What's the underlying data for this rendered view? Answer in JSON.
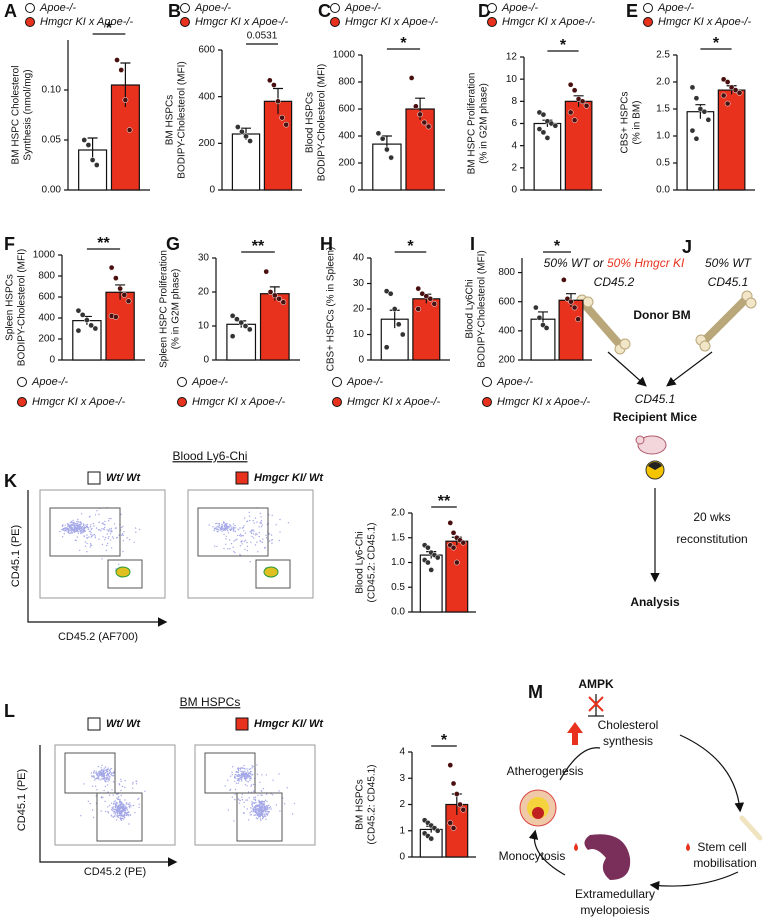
{
  "chart_data": [
    {
      "type": "bar",
      "panel": "A",
      "ylabel": [
        "BM HSPC Cholesterol",
        "Synthesis (nmol/mg)"
      ],
      "ylim": [
        0,
        0.15
      ],
      "yticks": [
        {
          "value": 0,
          "label": "0.00"
        },
        0.05,
        {
          "value": 0.1,
          "label": "0.10"
        }
      ],
      "significance": "*",
      "legend": "top",
      "series": [
        {
          "name": "Apoe-/-",
          "color": "#ffffff",
          "point_color": "#333333",
          "values": [
            0.04
          ],
          "errors": [
            0.012
          ],
          "points": [
            0.05,
            0.045,
            0.03,
            0.025
          ]
        },
        {
          "name": "Hmgcr KI x Apoe-/-",
          "color": "#e8321e",
          "point_color": "#4a1010",
          "values": [
            0.105
          ],
          "errors": [
            0.022
          ],
          "points": [
            0.13,
            0.12,
            0.09,
            0.06
          ]
        }
      ]
    },
    {
      "type": "bar",
      "panel": "B",
      "ylabel": [
        "BM HSPCs",
        "BODIPY-Cholesterol (MFI)"
      ],
      "ylim": [
        0,
        600
      ],
      "yticks": [
        0,
        200,
        400,
        600
      ],
      "significance": "0.0531",
      "legend": "top",
      "series": [
        {
          "name": "Apoe-/-",
          "color": "#ffffff",
          "point_color": "#333333",
          "values": [
            240
          ],
          "errors": [
            25
          ],
          "points": [
            270,
            250,
            230,
            210
          ]
        },
        {
          "name": "Hmgcr KI x Apoe-/-",
          "color": "#e8321e",
          "point_color": "#4a1010",
          "values": [
            380
          ],
          "errors": [
            55
          ],
          "points": [
            470,
            450,
            380,
            310,
            280
          ]
        }
      ]
    },
    {
      "type": "bar",
      "panel": "C",
      "ylabel": [
        "Blood HSPCs",
        "BODIPY-Cholesterol (MFI)"
      ],
      "ylim": [
        0,
        1000
      ],
      "yticks": [
        0,
        200,
        400,
        600,
        800,
        1000
      ],
      "significance": "*",
      "legend": "top",
      "series": [
        {
          "name": "Apoe-/-",
          "color": "#ffffff",
          "point_color": "#333333",
          "values": [
            340
          ],
          "errors": [
            60
          ],
          "points": [
            420,
            380,
            300,
            240
          ]
        },
        {
          "name": "Hmgcr KI x Apoe-/-",
          "color": "#e8321e",
          "point_color": "#4a1010",
          "values": [
            600
          ],
          "errors": [
            80
          ],
          "points": [
            830,
            620,
            560,
            500,
            470
          ]
        }
      ]
    },
    {
      "type": "bar",
      "panel": "D",
      "ylabel": [
        "BM HSPC Proliferation",
        "(% in G2M phase)"
      ],
      "ylim": [
        0,
        12
      ],
      "yticks": [
        0,
        2,
        4,
        6,
        8,
        10,
        12
      ],
      "significance": "*",
      "legend": "top",
      "series": [
        {
          "name": "Apoe-/-",
          "color": "#ffffff",
          "point_color": "#333333",
          "values": [
            6.0
          ],
          "errors": [
            0.3
          ],
          "points": [
            7.0,
            6.8,
            6.2,
            6.0,
            5.8,
            5.5,
            5.2,
            4.7
          ]
        },
        {
          "name": "Hmgcr KI x Apoe-/-",
          "color": "#e8321e",
          "point_color": "#4a1010",
          "values": [
            8.0
          ],
          "errors": [
            0.5
          ],
          "points": [
            9.5,
            9.0,
            8.2,
            8.0,
            7.6,
            7.0,
            6.3
          ]
        }
      ]
    },
    {
      "type": "bar",
      "panel": "E",
      "ylabel": [
        "CBS+ HSPCs",
        "(% in BM)"
      ],
      "ylim": [
        0,
        2.5
      ],
      "yticks": [
        {
          "value": 0,
          "label": "0.0"
        },
        0.5,
        {
          "value": 1,
          "label": "1.0"
        },
        1.5,
        {
          "value": 2,
          "label": "2.0"
        },
        2.5
      ],
      "significance": "*",
      "legend": "top",
      "series": [
        {
          "name": "Apoe-/-",
          "color": "#ffffff",
          "point_color": "#333333",
          "values": [
            1.45
          ],
          "errors": [
            0.13
          ],
          "points": [
            1.9,
            1.7,
            1.5,
            1.45,
            1.3,
            1.1,
            0.95
          ]
        },
        {
          "name": "Hmgcr KI x Apoe-/-",
          "color": "#e8321e",
          "point_color": "#4a1010",
          "values": [
            1.85
          ],
          "errors": [
            0.08
          ],
          "points": [
            2.05,
            2.0,
            1.9,
            1.85,
            1.8,
            1.75,
            1.6
          ]
        }
      ]
    },
    {
      "type": "bar",
      "panel": "F",
      "ylabel": [
        "Spleen HSPCs",
        "BODIPY-Cholesterol (MFI)"
      ],
      "ylim": [
        0,
        1000
      ],
      "yticks": [
        0,
        200,
        400,
        600,
        800,
        1000
      ],
      "significance": "**",
      "legend": "bottom",
      "series": [
        {
          "name": "Apoe-/-",
          "color": "#ffffff",
          "point_color": "#333333",
          "values": [
            375
          ],
          "errors": [
            40
          ],
          "points": [
            470,
            430,
            380,
            330,
            300,
            280
          ]
        },
        {
          "name": "Hmgcr KI x Apoe-/-",
          "color": "#e8321e",
          "point_color": "#4a1010",
          "values": [
            645
          ],
          "errors": [
            70
          ],
          "points": [
            880,
            780,
            680,
            620,
            560,
            420,
            410
          ]
        }
      ]
    },
    {
      "type": "bar",
      "panel": "G",
      "ylabel": [
        "Spleen HSPC Proliferation",
        "(% in G2M phase)"
      ],
      "ylim": [
        0,
        30
      ],
      "yticks": [
        0,
        10,
        20,
        30
      ],
      "significance": "**",
      "legend": "bottom",
      "series": [
        {
          "name": "Apoe-/-",
          "color": "#ffffff",
          "point_color": "#333333",
          "values": [
            10.5
          ],
          "errors": [
            1.0
          ],
          "points": [
            13,
            12,
            11,
            10,
            9,
            7
          ]
        },
        {
          "name": "Hmgcr KI x Apoe-/-",
          "color": "#e8321e",
          "point_color": "#4a1010",
          "values": [
            19.5
          ],
          "errors": [
            2.0
          ],
          "points": [
            26,
            20,
            19,
            18,
            17
          ]
        }
      ]
    },
    {
      "type": "bar",
      "panel": "H",
      "ylabel": [
        "CBS+ HSPCs (% in Spleen)"
      ],
      "ylim": [
        0,
        40
      ],
      "yticks": [
        0,
        10,
        20,
        30,
        40
      ],
      "significance": "*",
      "legend": "bottom",
      "series": [
        {
          "name": "Apoe-/-",
          "color": "#ffffff",
          "point_color": "#333333",
          "values": [
            16
          ],
          "errors": [
            3.5
          ],
          "points": [
            27,
            26,
            20,
            14,
            10,
            5
          ]
        },
        {
          "name": "Hmgcr KI x Apoe-/-",
          "color": "#e8321e",
          "point_color": "#4a1010",
          "values": [
            24
          ],
          "errors": [
            1.8
          ],
          "points": [
            28,
            26,
            25,
            24,
            22,
            20
          ]
        }
      ]
    },
    {
      "type": "bar",
      "panel": "I",
      "ylabel": [
        "Blood Ly6Chi",
        "BODIPY-Cholesterol (MFI)"
      ],
      "ylim": [
        200,
        900
      ],
      "yticks": [
        200,
        400,
        600,
        800
      ],
      "significance": "*",
      "legend": "bottom",
      "series": [
        {
          "name": "Apoe-/-",
          "color": "#ffffff",
          "point_color": "#333333",
          "values": [
            480
          ],
          "errors": [
            50
          ],
          "points": [
            560,
            490,
            440,
            420
          ]
        },
        {
          "name": "Hmgcr KI x Apoe-/-",
          "color": "#e8321e",
          "point_color": "#4a1010",
          "values": [
            610
          ],
          "errors": [
            45
          ],
          "points": [
            750,
            620,
            600,
            560,
            480
          ]
        }
      ]
    },
    {
      "type": "bar",
      "panel": "K",
      "flow_title": "Blood Ly6-Chi",
      "flow_ylabel": "CD45.1 (PE)",
      "flow_xlabel": "CD45.2 (AF700)",
      "ylabel": [
        "Blood Ly6-Chi",
        "(CD45.2: CD45.1)"
      ],
      "ylim": [
        0,
        2.0
      ],
      "yticks": [
        {
          "value": 0,
          "label": "0.0"
        },
        0.5,
        {
          "value": 1,
          "label": "1.0"
        },
        1.5,
        {
          "value": 2,
          "label": "2.0"
        }
      ],
      "significance": "**",
      "legend": "flow",
      "series": [
        {
          "name": "Wt/ Wt",
          "color": "#ffffff",
          "point_color": "#333333",
          "values": [
            1.15
          ],
          "errors": [
            0.07
          ],
          "points": [
            1.35,
            1.3,
            1.2,
            1.15,
            1.1,
            1.05,
            1.0,
            0.85
          ]
        },
        {
          "name": "Hmgcr KI/ Wt",
          "color": "#e8321e",
          "point_color": "#4a1010",
          "values": [
            1.43
          ],
          "errors": [
            0.08
          ],
          "points": [
            1.8,
            1.6,
            1.5,
            1.45,
            1.4,
            1.35,
            1.3,
            1.0
          ]
        }
      ]
    },
    {
      "type": "bar",
      "panel": "L",
      "flow_title": "BM HSPCs",
      "flow_ylabel": "CD45.1 (PE)",
      "flow_xlabel": "CD45.2 (PE)",
      "ylabel": [
        "BM HSPCs",
        "(CD45.2: CD45.1)"
      ],
      "ylim": [
        0,
        4
      ],
      "yticks": [
        0,
        1,
        2,
        3,
        4
      ],
      "significance": "*",
      "legend": "flow",
      "series": [
        {
          "name": "Wt/ Wt",
          "color": "#ffffff",
          "point_color": "#333333",
          "values": [
            1.05
          ],
          "errors": [
            0.12
          ],
          "points": [
            1.4,
            1.3,
            1.2,
            1.1,
            1.0,
            0.9,
            0.8,
            0.7
          ]
        },
        {
          "name": "Hmgcr KI/ Wt",
          "color": "#e8321e",
          "point_color": "#4a1010",
          "values": [
            2.0
          ],
          "errors": [
            0.4
          ],
          "points": [
            3.5,
            2.8,
            2.4,
            2.0,
            1.8,
            1.3,
            1.1
          ]
        }
      ]
    }
  ],
  "diagram_j": {
    "panel": "J",
    "donor_left_a": "50% WT or ",
    "donor_left_b": "50% Hmgcr KI",
    "donor_left_c": "CD45.2",
    "donor_right_a": "50% WT",
    "donor_right_b": "CD45.1",
    "donor": "Donor BM",
    "recipient_a": "CD45.1",
    "recipient_b": "Recipient Mice",
    "time_a": "20 wks",
    "time_b": "reconstitution",
    "end": "Analysis"
  },
  "diagram_m": {
    "panel": "M",
    "ampk": "AMPK",
    "chol_a": "Cholesterol",
    "chol_b": "synthesis",
    "athero": "Atherogenesis",
    "stem_a": "Stem cell",
    "stem_b": "mobilisation",
    "mono": "Monocytosis",
    "em_a": "Extramedullary",
    "em_b": "myelopoiesis"
  }
}
